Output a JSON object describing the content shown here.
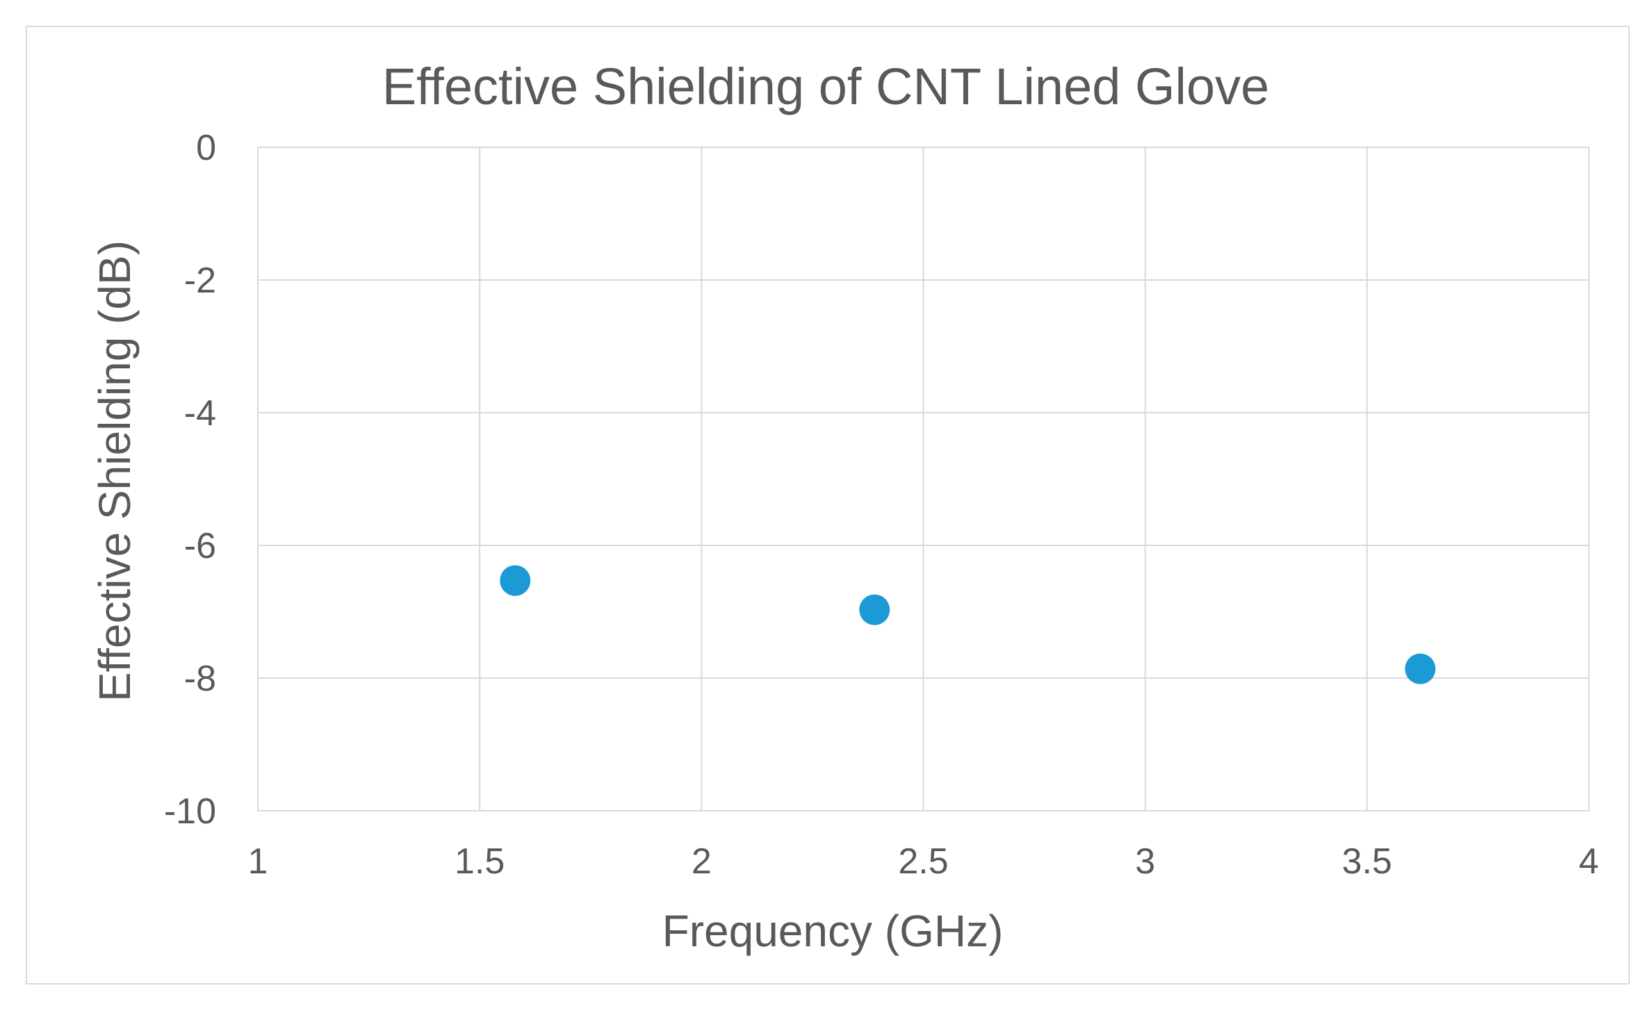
{
  "chart_data": {
    "type": "scatter",
    "title": "Effective Shielding of CNT Lined Glove",
    "xlabel": "Frequency (GHz)",
    "ylabel": "Effective Shielding (dB)",
    "xlim": [
      1,
      4
    ],
    "ylim": [
      -10,
      0
    ],
    "x_ticks": [
      1,
      1.5,
      2,
      2.5,
      3,
      3.5,
      4
    ],
    "y_ticks": [
      0,
      -2,
      -4,
      -6,
      -8,
      -10
    ],
    "x_tick_labels": [
      "1",
      "1.5",
      "2",
      "2.5",
      "3",
      "3.5",
      "4"
    ],
    "y_tick_labels": [
      "0",
      "-2",
      "-4",
      "-6",
      "-8",
      "-10"
    ],
    "grid": true,
    "legend": "none",
    "series": [
      {
        "name": "Effective Shielding",
        "color": "#1b9ad6",
        "x": [
          1.58,
          2.39,
          3.62
        ],
        "y": [
          -6.53,
          -6.97,
          -7.86
        ]
      }
    ]
  }
}
